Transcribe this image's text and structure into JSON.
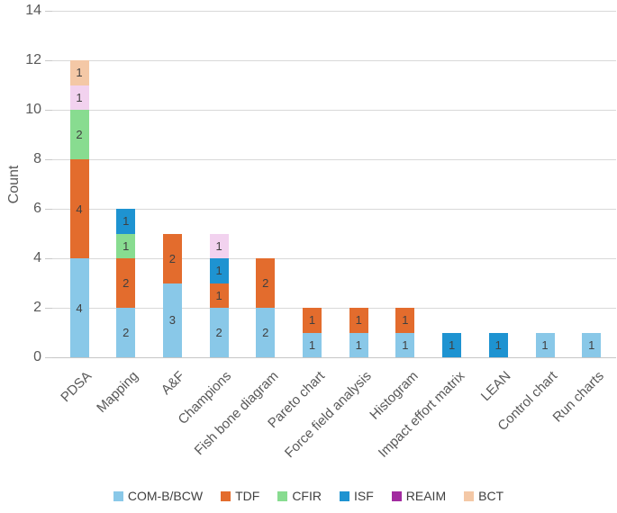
{
  "y_axis": {
    "title": "Count",
    "tick_labels": [
      "0",
      "2",
      "4",
      "6",
      "8",
      "10",
      "12",
      "14"
    ]
  },
  "chart_data": {
    "type": "bar",
    "stacked": true,
    "title": "",
    "xlabel": "",
    "ylabel": "Count",
    "ylim": [
      0,
      14
    ],
    "ytick_step": 2,
    "grid": true,
    "legend_position": "bottom",
    "segment_labels_shown": true,
    "categories": [
      "PDSA",
      "Mapping",
      "A&F",
      "Champions",
      "Fish bone diagram",
      "Pareto chart",
      "Force field analysis",
      "Histogram",
      "Impact effort matrix",
      "LEAN",
      "Control chart",
      "Run charts"
    ],
    "totals": [
      12,
      6,
      5,
      5,
      4,
      2,
      2,
      2,
      1,
      1,
      1,
      1
    ],
    "series": [
      {
        "name": "COM-B/BCW",
        "color": "#89c8e8",
        "values": [
          4,
          2,
          3,
          2,
          2,
          1,
          1,
          1,
          0,
          0,
          1,
          1
        ]
      },
      {
        "name": "TDF",
        "color": "#e36c2d",
        "values": [
          4,
          2,
          2,
          1,
          2,
          1,
          1,
          1,
          0,
          0,
          0,
          0
        ]
      },
      {
        "name": "CFIR",
        "color": "#88dc90",
        "values": [
          2,
          1,
          0,
          0,
          0,
          0,
          0,
          0,
          0,
          0,
          0,
          0
        ]
      },
      {
        "name": "ISF",
        "color": "#1e93d1",
        "values": [
          0,
          1,
          0,
          1,
          0,
          0,
          0,
          0,
          1,
          1,
          0,
          0
        ]
      },
      {
        "name": "REAIM",
        "color": "#a22ba0",
        "bar_color": "#f2d2ef",
        "values": [
          1,
          0,
          0,
          1,
          0,
          0,
          0,
          0,
          0,
          0,
          0,
          0
        ]
      },
      {
        "name": "BCT",
        "color": "#f4c8a6",
        "values": [
          1,
          0,
          0,
          0,
          0,
          0,
          0,
          0,
          0,
          0,
          0,
          0
        ]
      }
    ],
    "colors": {
      "gridline": "#d9d9d9",
      "axis_text": "#595959",
      "segment_label_text": "#404040"
    }
  }
}
